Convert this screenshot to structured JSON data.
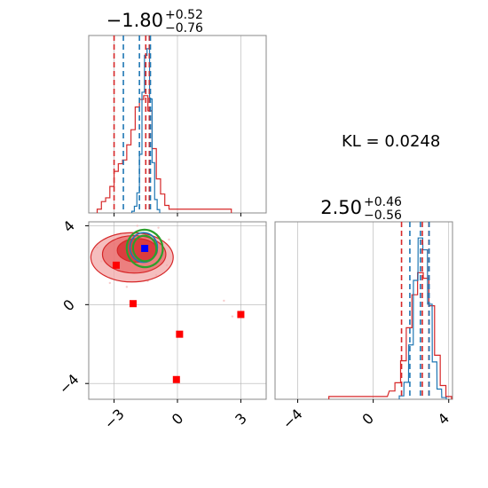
{
  "chart_data": [
    {
      "type": "histogram",
      "panel": "top-left",
      "title": {
        "median": "−1.80",
        "plus": "+0.52",
        "minus": "−0.76"
      },
      "xlim": [
        -4.2,
        4.2
      ],
      "bins_x": [
        -3.3,
        -3.15,
        -3.0,
        -2.85,
        -2.7,
        -2.55,
        -2.4,
        -2.25,
        -2.1,
        -1.95,
        -1.8,
        -1.65,
        -1.5,
        -1.35,
        -1.2,
        -1.05,
        -0.9,
        -0.75,
        -0.6,
        -0.45,
        -0.3
      ],
      "blue_counts": [
        0,
        0,
        0,
        0,
        0,
        0,
        0,
        0,
        0,
        0,
        0,
        0,
        0,
        0,
        0,
        0,
        0,
        0,
        0,
        0,
        0
      ],
      "blue_hist": {
        "x": [
          -2.1,
          -1.98,
          -1.86,
          -1.74,
          -1.62,
          -1.5,
          -1.38,
          -1.26,
          -1.14,
          -1.02,
          -0.9
        ],
        "y": [
          1,
          4,
          12,
          35,
          72,
          94,
          98,
          68,
          30,
          8,
          2
        ]
      },
      "red_hist": {
        "x": [
          -3.7,
          -3.5,
          -3.3,
          -3.1,
          -2.9,
          -2.7,
          -2.5,
          -2.3,
          -2.1,
          -1.9,
          -1.7,
          -1.5,
          -1.3,
          -1.1,
          -0.9,
          -0.7,
          -0.5,
          -0.3,
          2.45
        ],
        "y": [
          1,
          3,
          4,
          7,
          11,
          13,
          14,
          18,
          22,
          28,
          30,
          31,
          27,
          17,
          9,
          5,
          2,
          1,
          1
        ]
      },
      "blue_quantiles": [
        -2.56,
        -1.8,
        -1.28
      ],
      "red_quantiles": [
        -3.0,
        -1.5,
        -1.33
      ]
    },
    {
      "type": "histogram",
      "panel": "bottom-right",
      "title": {
        "median": "2.50",
        "plus": "+0.46",
        "minus": "−0.56"
      },
      "xlim": [
        -5.2,
        4.2
      ],
      "xticks": [
        "−4",
        "0",
        "4"
      ],
      "xtick_values": [
        -4,
        0,
        4
      ],
      "blue_hist": {
        "x": [
          1.5,
          1.75,
          2.0,
          2.25,
          2.5,
          2.75,
          3.0,
          3.25,
          3.5,
          3.75
        ],
        "y": [
          2,
          10,
          32,
          70,
          95,
          88,
          56,
          22,
          6,
          1
        ]
      },
      "red_hist": {
        "x": [
          -2.2,
          -1.0,
          0.6,
          1.0,
          1.3,
          1.6,
          1.9,
          2.2,
          2.5,
          2.8,
          3.1,
          3.4,
          3.7,
          4.0
        ],
        "y": [
          1,
          1,
          1,
          3,
          6,
          14,
          26,
          38,
          46,
          44,
          34,
          16,
          5,
          1
        ]
      },
      "blue_quantiles": [
        1.94,
        2.5,
        2.96
      ],
      "red_quantiles": [
        1.5,
        2.6,
        2.95
      ]
    },
    {
      "type": "scatter",
      "panel": "bottom-left",
      "xlim": [
        -4.2,
        4.2
      ],
      "ylim": [
        -4.8,
        4.2
      ],
      "xticks": [
        "−3",
        "0",
        "3"
      ],
      "xtick_values": [
        -3,
        0,
        3
      ],
      "yticks": [
        "4",
        "0",
        "−4"
      ],
      "ytick_values": [
        4,
        0,
        -4
      ],
      "red_points": [
        {
          "x": -2.9,
          "y": 2.0
        },
        {
          "x": -2.1,
          "y": 0.05
        },
        {
          "x": 0.1,
          "y": -1.5
        },
        {
          "x": -0.05,
          "y": -3.8
        },
        {
          "x": 3.0,
          "y": -0.5
        }
      ],
      "blue_point": {
        "x": -1.55,
        "y": 2.85
      },
      "red_contours": [
        {
          "cx": -2.15,
          "cy": 2.4,
          "rx": 1.95,
          "ry": 1.25
        },
        {
          "cx": -2.05,
          "cy": 2.55,
          "rx": 1.5,
          "ry": 0.95
        },
        {
          "cx": -1.9,
          "cy": 2.75,
          "rx": 0.95,
          "ry": 0.6
        }
      ],
      "green_contours": [
        {
          "cx": -1.55,
          "cy": 2.85,
          "rx": 0.85,
          "ry": 0.95
        },
        {
          "cx": -1.55,
          "cy": 2.85,
          "rx": 0.55,
          "ry": 0.65
        }
      ],
      "blue_contours": [
        {
          "cx": -1.6,
          "cy": 2.9,
          "rx": 0.65,
          "ry": 0.75
        }
      ],
      "scatter_cloud": [
        {
          "x": -3.6,
          "y": 2.2
        },
        {
          "x": -3.2,
          "y": 1.1
        },
        {
          "x": -2.7,
          "y": 3.6
        },
        {
          "x": -3.0,
          "y": 3.1
        },
        {
          "x": -1.0,
          "y": 1.5
        },
        {
          "x": -0.5,
          "y": 2.0
        },
        {
          "x": -0.4,
          "y": 3.3
        },
        {
          "x": -2.4,
          "y": 0.9
        },
        {
          "x": -1.4,
          "y": 1.2
        },
        {
          "x": -3.8,
          "y": 2.9
        },
        {
          "x": 2.2,
          "y": 0.2
        },
        {
          "x": 2.6,
          "y": -0.6
        },
        {
          "x": -0.9,
          "y": 3.9
        },
        {
          "x": -1.9,
          "y": 4.0
        }
      ]
    }
  ],
  "annotation": {
    "kl_text": "KL = 0.0248"
  },
  "colors": {
    "blue": "#1f77b4",
    "red": "#d62728",
    "green": "#2ca02c",
    "marker_blue": "#0000ff",
    "marker_red": "#ff0000",
    "grid": "#b0b0b0"
  }
}
